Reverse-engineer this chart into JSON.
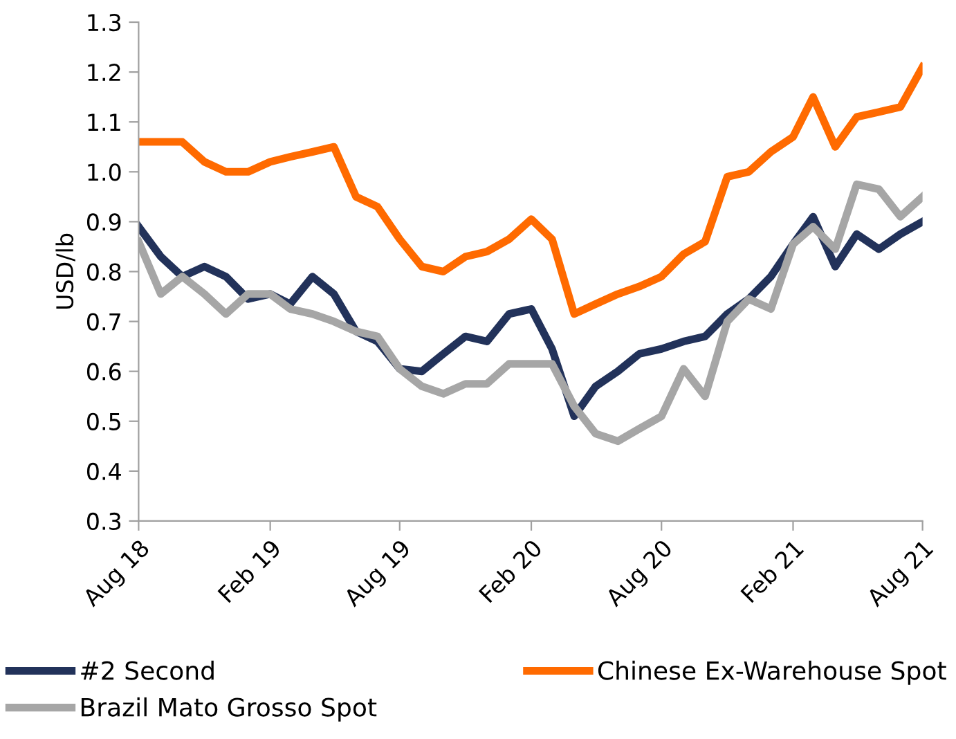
{
  "chart_data": {
    "type": "line",
    "ylabel": "USD/lb",
    "x": [
      "2018-08",
      "2018-09",
      "2018-10",
      "2018-11",
      "2018-12",
      "2019-01",
      "2019-02",
      "2019-03",
      "2019-04",
      "2019-05",
      "2019-06",
      "2019-07",
      "2019-08",
      "2019-09",
      "2019-10",
      "2019-11",
      "2019-12",
      "2020-01",
      "2020-02",
      "2020-03",
      "2020-04",
      "2020-05",
      "2020-06",
      "2020-07",
      "2020-08",
      "2020-09",
      "2020-10",
      "2020-11",
      "2020-12",
      "2021-01",
      "2021-02",
      "2021-03",
      "2021-04",
      "2021-05",
      "2021-06",
      "2021-07",
      "2021-08"
    ],
    "series": [
      {
        "name": "#2 Second",
        "color": "#22325a",
        "values": [
          0.89,
          0.83,
          0.79,
          0.81,
          0.79,
          0.745,
          0.755,
          0.735,
          0.79,
          0.755,
          0.68,
          0.66,
          0.605,
          0.6,
          0.635,
          0.67,
          0.66,
          0.715,
          0.725,
          0.645,
          0.51,
          0.57,
          0.6,
          0.635,
          0.645,
          0.66,
          0.67,
          0.715,
          0.745,
          0.79,
          0.855,
          0.91,
          0.81,
          0.875,
          0.845,
          0.875,
          0.9
        ]
      },
      {
        "name": "Chinese Ex-Warehouse Spot",
        "color": "#ff6a00",
        "values": [
          1.06,
          1.06,
          1.06,
          1.02,
          1.0,
          1.0,
          1.02,
          1.03,
          1.04,
          1.05,
          0.95,
          0.93,
          0.865,
          0.81,
          0.8,
          0.83,
          0.84,
          0.865,
          0.905,
          0.865,
          0.715,
          0.735,
          0.755,
          0.77,
          0.79,
          0.835,
          0.86,
          0.99,
          1.0,
          1.04,
          1.07,
          1.15,
          1.05,
          1.11,
          1.12,
          1.13,
          1.21
        ]
      },
      {
        "name": "Brazil Mato Grosso Spot",
        "color": "#a6a6a6",
        "values": [
          0.86,
          0.755,
          0.79,
          0.755,
          0.715,
          0.755,
          0.755,
          0.725,
          0.715,
          0.7,
          0.68,
          0.67,
          0.605,
          0.57,
          0.555,
          0.575,
          0.575,
          0.615,
          0.615,
          0.615,
          0.53,
          0.475,
          0.46,
          0.485,
          0.51,
          0.605,
          0.55,
          0.7,
          0.745,
          0.725,
          0.855,
          0.89,
          0.845,
          0.975,
          0.965,
          0.91,
          0.95
        ]
      }
    ],
    "xlim": [
      "2018-08",
      "2021-08"
    ],
    "xticks": [
      {
        "value": "2018-08",
        "label": "Aug 18"
      },
      {
        "value": "2019-02",
        "label": "Feb 19"
      },
      {
        "value": "2019-08",
        "label": "Aug 19"
      },
      {
        "value": "2020-02",
        "label": "Feb 20"
      },
      {
        "value": "2020-08",
        "label": "Aug 20"
      },
      {
        "value": "2021-02",
        "label": "Feb 21"
      },
      {
        "value": "2021-08",
        "label": "Aug 21"
      }
    ],
    "ylim": [
      0.3,
      1.3
    ],
    "yticks": [
      {
        "value": 0.3,
        "label": "0.3"
      },
      {
        "value": 0.4,
        "label": "0.4"
      },
      {
        "value": 0.5,
        "label": "0.5"
      },
      {
        "value": 0.6,
        "label": "0.6"
      },
      {
        "value": 0.7,
        "label": "0.7"
      },
      {
        "value": 0.8,
        "label": "0.8"
      },
      {
        "value": 0.9,
        "label": "0.9"
      },
      {
        "value": 1.0,
        "label": "1.0"
      },
      {
        "value": 1.1,
        "label": "1.1"
      },
      {
        "value": 1.2,
        "label": "1.2"
      },
      {
        "value": 1.3,
        "label": "1.3"
      }
    ],
    "legend": "bottom",
    "grid": false,
    "line_style": "solid",
    "marker": "none"
  }
}
